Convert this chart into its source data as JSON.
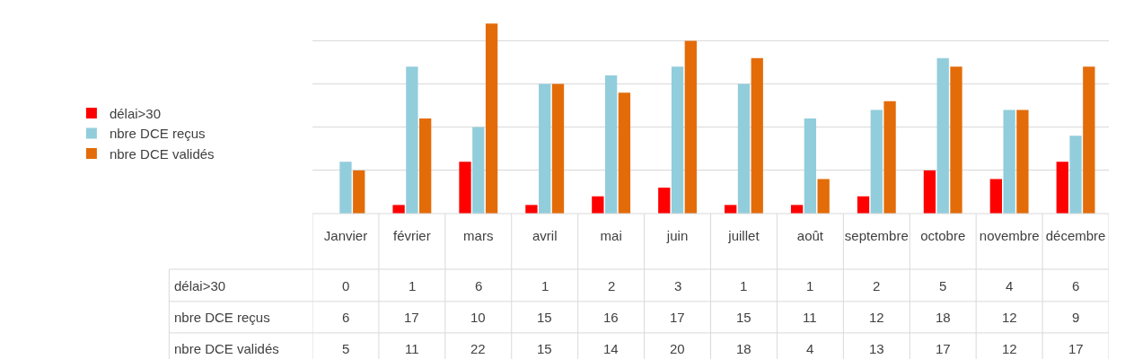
{
  "chart_data": {
    "type": "bar",
    "categories": [
      "Janvier",
      "février",
      "mars",
      "avril",
      "mai",
      "juin",
      "juillet",
      "août",
      "septembre",
      "octobre",
      "novembre",
      "décembre"
    ],
    "series": [
      {
        "name": "délai>30",
        "color": "#ff0000",
        "values": [
          0,
          1,
          6,
          1,
          2,
          3,
          1,
          1,
          2,
          5,
          4,
          6
        ]
      },
      {
        "name": "nbre DCE reçus",
        "color": "#92cddc",
        "values": [
          6,
          17,
          10,
          15,
          16,
          17,
          15,
          11,
          12,
          18,
          12,
          9
        ]
      },
      {
        "name": "nbre DCE validés",
        "color": "#e36c09",
        "values": [
          5,
          11,
          22,
          15,
          14,
          20,
          18,
          4,
          13,
          17,
          12,
          17
        ]
      }
    ],
    "yticks": [
      {
        "value": 0,
        "label": null
      },
      {
        "value": 5,
        "label": null
      },
      {
        "value": 10,
        "label": null
      },
      {
        "value": 15,
        "label": null
      },
      {
        "value": 20,
        "label": null
      }
    ],
    "grid": "y",
    "legend": "left",
    "data_labels": true,
    "tick_labels": "x"
  }
}
